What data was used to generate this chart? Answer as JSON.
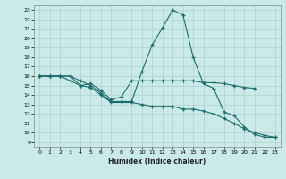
{
  "title": "",
  "xlabel": "Humidex (Indice chaleur)",
  "background_color": "#caeaea",
  "grid_color": "#b0d0d0",
  "line_color": "#1e6b6b",
  "xlim": [
    -0.5,
    23.5
  ],
  "ylim": [
    8.5,
    23.5
  ],
  "xticks": [
    0,
    1,
    2,
    3,
    4,
    5,
    6,
    7,
    8,
    9,
    10,
    11,
    12,
    13,
    14,
    15,
    16,
    17,
    18,
    19,
    20,
    21,
    22,
    23
  ],
  "yticks": [
    9,
    10,
    11,
    12,
    13,
    14,
    15,
    16,
    17,
    18,
    19,
    20,
    21,
    22,
    23
  ],
  "line1_x": [
    0,
    1,
    2,
    3,
    4,
    5,
    6,
    7,
    8,
    9,
    10,
    11,
    12,
    13,
    14,
    15,
    16,
    17,
    18,
    19,
    20,
    21,
    22,
    23
  ],
  "line1_y": [
    16,
    16,
    16,
    16,
    15.5,
    15,
    14.2,
    13.3,
    13.3,
    13.3,
    16.5,
    19.3,
    21.1,
    23.0,
    22.5,
    18.0,
    15.2,
    14.7,
    12.2,
    11.8,
    10.6,
    9.8,
    9.5,
    9.5
  ],
  "line2_x": [
    0,
    1,
    2,
    3,
    4,
    5,
    6,
    7,
    8,
    9,
    10,
    11,
    12,
    13,
    14,
    15,
    16,
    17,
    18,
    19,
    20,
    21
  ],
  "line2_y": [
    16,
    16,
    16,
    15.5,
    15.0,
    15.2,
    14.5,
    13.5,
    13.8,
    15.5,
    15.5,
    15.5,
    15.5,
    15.5,
    15.5,
    15.5,
    15.3,
    15.3,
    15.2,
    15.0,
    14.8,
    14.7
  ],
  "line3_x": [
    0,
    1,
    2,
    3,
    4,
    5,
    6,
    7,
    8,
    9,
    10,
    11,
    12,
    13,
    14,
    15,
    16,
    17,
    18,
    19,
    20,
    21,
    22,
    23
  ],
  "line3_y": [
    16,
    16,
    16,
    16,
    15,
    14.8,
    14.0,
    13.2,
    13.2,
    13.2,
    13.0,
    12.8,
    12.8,
    12.8,
    12.5,
    12.5,
    12.3,
    12.0,
    11.5,
    11.0,
    10.4,
    10.0,
    9.7,
    9.5
  ]
}
